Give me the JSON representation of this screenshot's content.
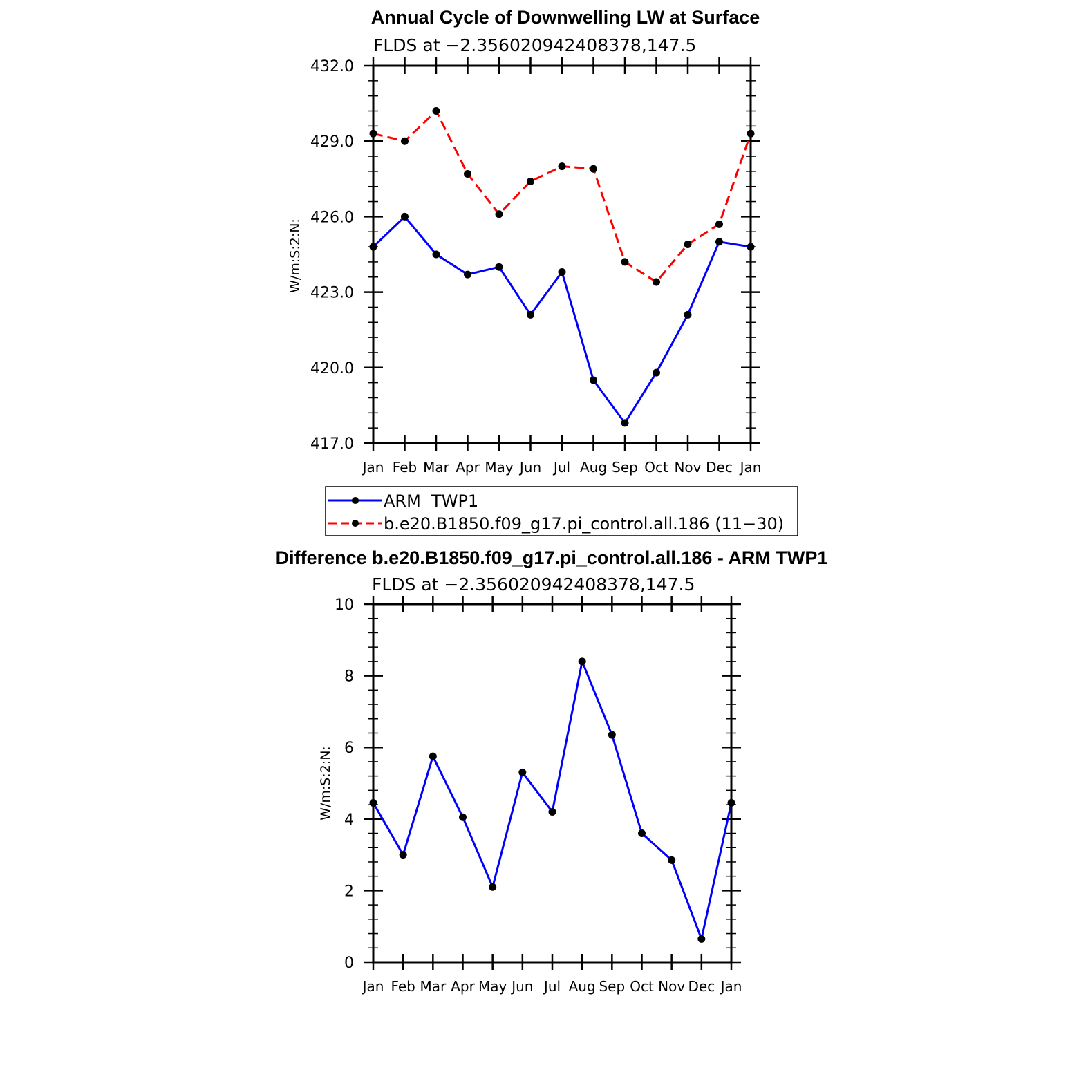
{
  "chart_data": [
    {
      "type": "line",
      "title": "Annual Cycle of Downwelling LW at Surface",
      "subtitle": "FLDS at −2.356020942408378,147.5",
      "ylabel": "W/m:S:2:N:",
      "categories": [
        "Jan",
        "Feb",
        "Mar",
        "Apr",
        "May",
        "Jun",
        "Jul",
        "Aug",
        "Sep",
        "Oct",
        "Nov",
        "Dec",
        "Jan"
      ],
      "ylim": [
        417.0,
        432.0
      ],
      "yticks": [
        "417.0",
        "420.0",
        "423.0",
        "426.0",
        "429.0",
        "432.0"
      ],
      "series": [
        {
          "name": "ARM  TWP1",
          "color": "#0000ff",
          "dash": "solid",
          "values": [
            424.8,
            426.0,
            424.5,
            423.7,
            424.0,
            422.1,
            423.8,
            419.5,
            417.8,
            419.8,
            422.1,
            425.0,
            424.8
          ]
        },
        {
          "name": "b.e20.B1850.f09_g17.pi_control.all.186 (11−30)",
          "color": "#ff0000",
          "dash": "dashed",
          "values": [
            429.3,
            429.0,
            430.2,
            427.7,
            426.1,
            427.4,
            428.0,
            427.9,
            424.2,
            423.4,
            424.9,
            425.7,
            429.3
          ]
        }
      ],
      "legend": "below"
    },
    {
      "type": "line",
      "title": "Difference b.e20.B1850.f09_g17.pi_control.all.186 - ARM TWP1",
      "subtitle": "FLDS at −2.356020942408378,147.5",
      "ylabel": "W/m:S:2:N:",
      "categories": [
        "Jan",
        "Feb",
        "Mar",
        "Apr",
        "May",
        "Jun",
        "Jul",
        "Aug",
        "Sep",
        "Oct",
        "Nov",
        "Dec",
        "Jan"
      ],
      "ylim": [
        0,
        10
      ],
      "yticks": [
        "0",
        "2",
        "4",
        "6",
        "8",
        "10"
      ],
      "series": [
        {
          "color": "#0000ff",
          "dash": "solid",
          "values": [
            4.45,
            3.0,
            5.75,
            4.05,
            2.1,
            5.3,
            4.2,
            8.4,
            6.35,
            3.6,
            2.85,
            0.65,
            4.45
          ]
        }
      ]
    }
  ]
}
